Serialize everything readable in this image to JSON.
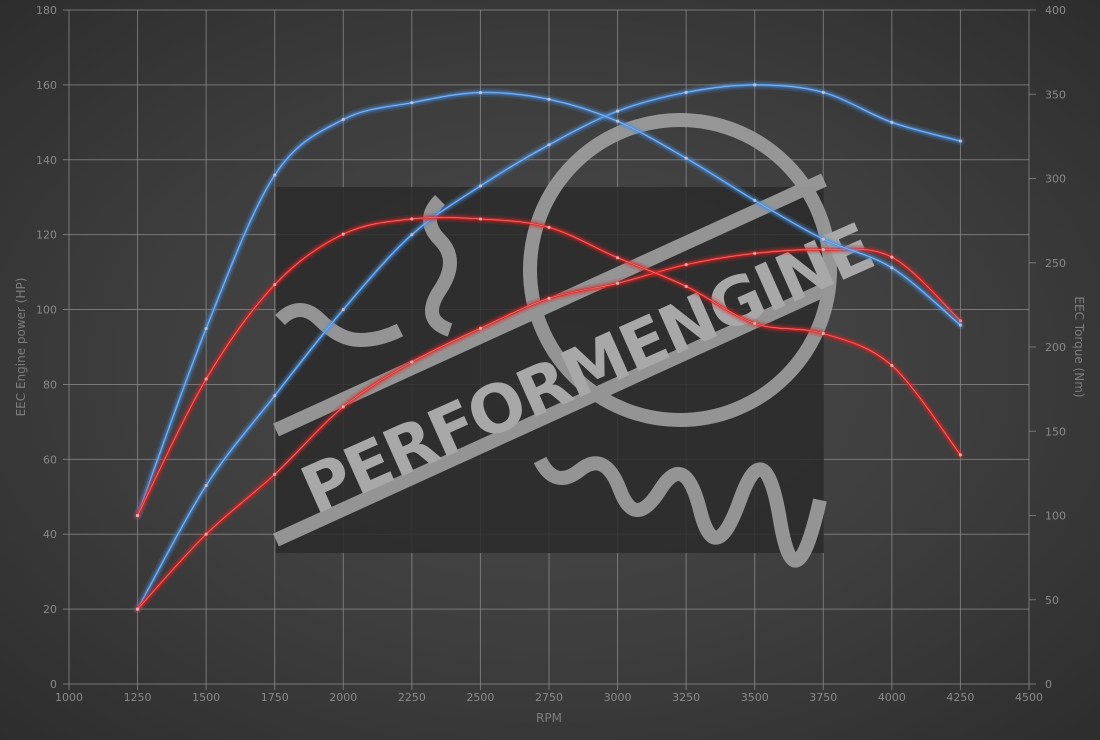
{
  "chart_data": {
    "type": "line",
    "title": "",
    "xlabel": "RPM",
    "ylabel_left": "EEC Engine power (HP)",
    "ylabel_right": "EEC Torque (Nm)",
    "xlim": [
      1000,
      4500
    ],
    "ylim_left": [
      0,
      180
    ],
    "ylim_right": [
      0,
      400
    ],
    "grid": true,
    "x_ticks": [
      1000,
      1250,
      1500,
      1750,
      2000,
      2250,
      2500,
      2750,
      3000,
      3250,
      3500,
      3750,
      4000,
      4250,
      4500
    ],
    "y_ticks_left": [
      0,
      20,
      40,
      60,
      80,
      100,
      120,
      140,
      160,
      180
    ],
    "y_ticks_right": [
      0,
      50,
      100,
      150,
      200,
      250,
      300,
      350,
      400
    ],
    "x": [
      1250,
      1500,
      1750,
      2000,
      2250,
      2500,
      2750,
      3000,
      3250,
      3500,
      3750,
      4000,
      4250
    ],
    "series": [
      {
        "axis": "left",
        "color": "#4a8fe0",
        "values": [
          20,
          53,
          77,
          100,
          120,
          133,
          144,
          153,
          158,
          160,
          158,
          150,
          145
        ]
      },
      {
        "axis": "left",
        "color": "#e02424",
        "values": [
          20,
          40,
          56,
          74,
          86,
          95,
          103,
          107,
          112,
          115,
          116,
          114,
          97
        ]
      },
      {
        "axis": "right",
        "color": "#4a8fe0",
        "values": [
          100,
          211,
          302,
          335,
          345,
          351,
          347,
          334,
          312,
          287,
          264,
          247,
          213
        ]
      },
      {
        "axis": "right",
        "color": "#e02424",
        "values": [
          100,
          181,
          237,
          267,
          276,
          276,
          271,
          253,
          236,
          214,
          208,
          189,
          136
        ]
      }
    ]
  },
  "watermark": {
    "logo_text": "PERFORMENGINE"
  },
  "colors": {
    "background": "#3d3d3d",
    "grid": "#8c8c8c",
    "tuned": "#4a8fe0",
    "stock": "#e02424"
  }
}
